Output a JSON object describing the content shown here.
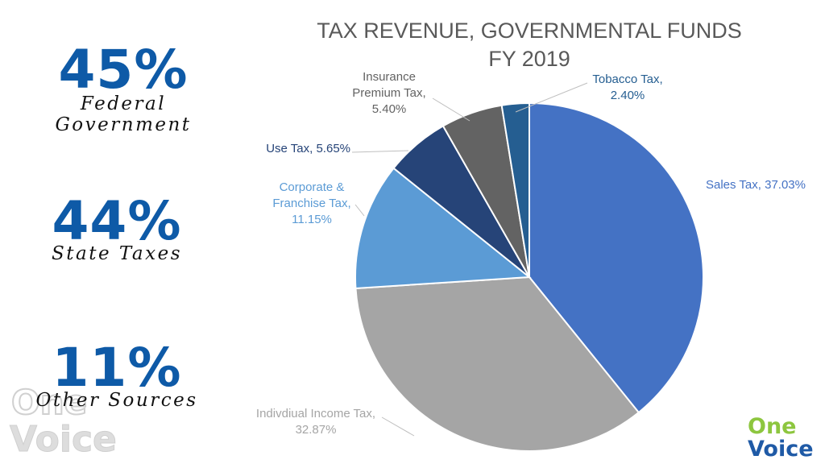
{
  "stats": [
    {
      "percent": "45%",
      "label": "Federal Government"
    },
    {
      "percent": "44%",
      "label": "State Taxes"
    },
    {
      "percent": "11%",
      "label": "Other Sources"
    }
  ],
  "logos": {
    "watermark": {
      "line1": "One",
      "line2": "Voice"
    },
    "brand": {
      "line1": "One",
      "line2": "Voice"
    }
  },
  "chart_data": {
    "type": "pie",
    "title": [
      "TAX REVENUE, GOVERNMENTAL FUNDS",
      "FY 2019"
    ],
    "slices": [
      {
        "name": "Sales Tax",
        "value": 37.03,
        "label": [
          "Sales Tax, 37.03%"
        ],
        "color": "#4472c4",
        "label_color": "#4472c4"
      },
      {
        "name": "Indivdiual Income Tax",
        "value": 32.87,
        "label": [
          "Indivdiual Income Tax,",
          "32.87%"
        ],
        "color": "#a5a5a5",
        "label_color": "#a5a5a5"
      },
      {
        "name": "Corporate & Franchise Tax",
        "value": 11.15,
        "label": [
          "Corporate &",
          "Franchise Tax,",
          "11.15%"
        ],
        "color": "#5b9bd5",
        "label_color": "#5b9bd5"
      },
      {
        "name": "Use Tax",
        "value": 5.65,
        "label": [
          "Use Tax, 5.65%"
        ],
        "color": "#264478",
        "label_color": "#264478"
      },
      {
        "name": "Insurance Premium Tax",
        "value": 5.4,
        "label": [
          "Insurance",
          "Premium Tax,",
          "5.40%"
        ],
        "color": "#636363",
        "label_color": "#636363"
      },
      {
        "name": "Tobacco Tax",
        "value": 2.4,
        "label": [
          "Tobacco Tax,",
          "2.40%"
        ],
        "color": "#255e91",
        "label_color": "#255e91"
      }
    ]
  }
}
